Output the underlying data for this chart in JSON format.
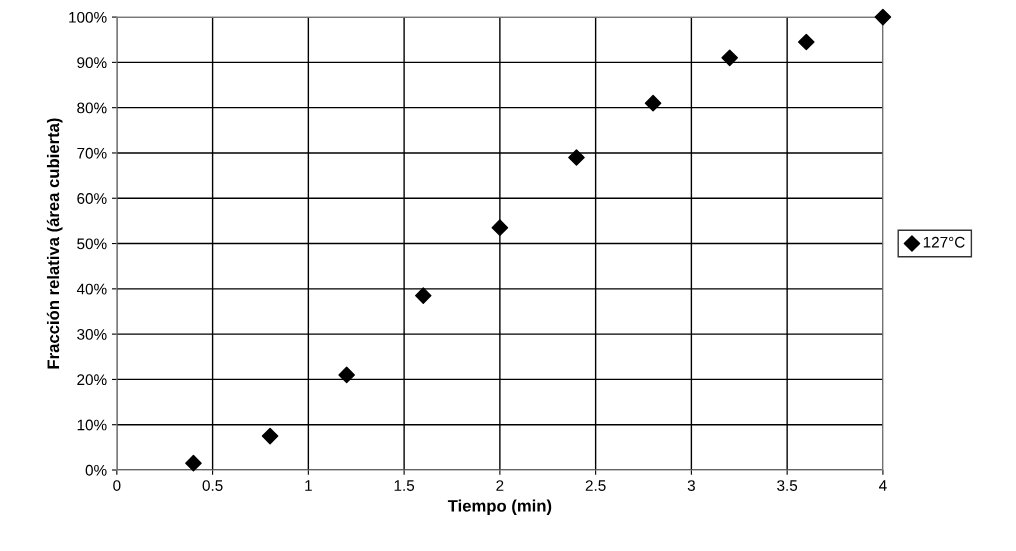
{
  "chart_data": {
    "type": "scatter",
    "xlabel": "Tiempo (min)",
    "ylabel": "Fracción relativa (área cubierta)",
    "x": [
      0.4,
      0.8,
      1.2,
      1.6,
      2.0,
      2.4,
      2.8,
      3.2,
      3.6,
      4.0
    ],
    "series": [
      {
        "name": "127°C",
        "color": "#000000",
        "values": [
          1.5,
          7.5,
          21,
          38.5,
          53.5,
          69,
          81,
          91,
          94.5,
          100
        ]
      }
    ],
    "xlim": [
      0,
      4
    ],
    "xticks": [
      0,
      0.5,
      1,
      1.5,
      2,
      2.5,
      3,
      3.5,
      4
    ],
    "ylim": [
      0,
      100
    ],
    "yticks": [
      {
        "value": 0,
        "label": "0%"
      },
      {
        "value": 10,
        "label": "10%"
      },
      {
        "value": 20,
        "label": "20%"
      },
      {
        "value": 30,
        "label": "30%"
      },
      {
        "value": 40,
        "label": "40%"
      },
      {
        "value": 50,
        "label": "50%"
      },
      {
        "value": 60,
        "label": "60%"
      },
      {
        "value": 70,
        "label": "70%"
      },
      {
        "value": 80,
        "label": "80%"
      },
      {
        "value": 90,
        "label": "90%"
      },
      {
        "value": 100,
        "label": "100%"
      }
    ],
    "grid": true,
    "legend": "right",
    "marker": "diamond"
  }
}
